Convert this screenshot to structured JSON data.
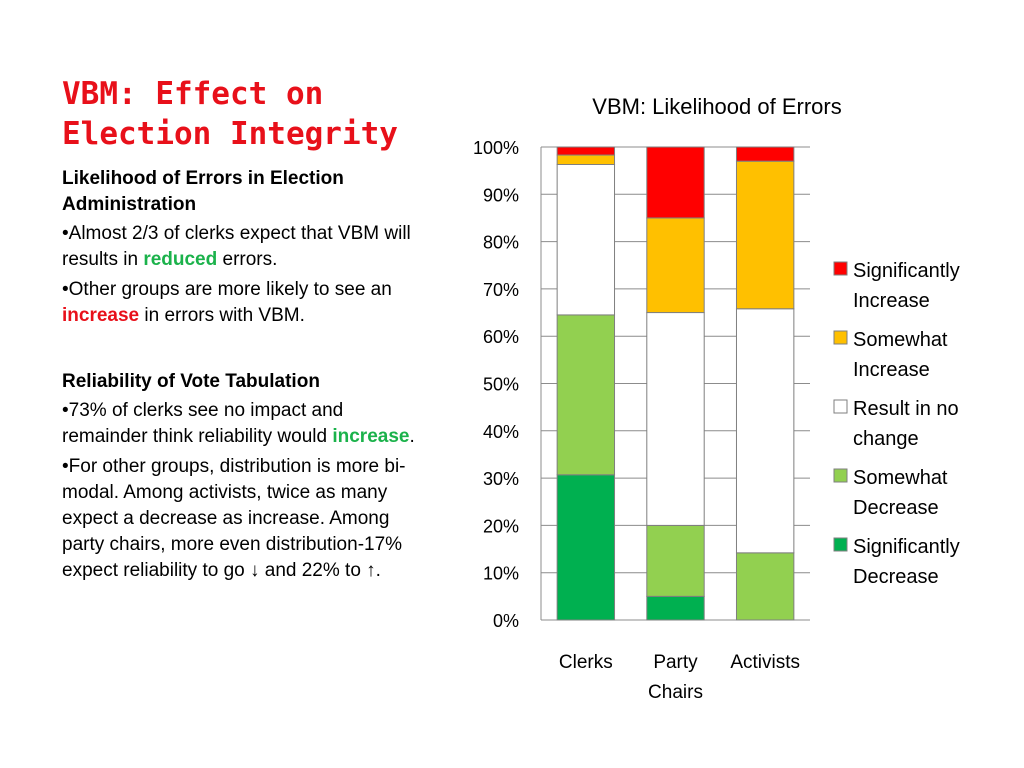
{
  "slide": {
    "title": "VBM: Effect on\nElection Integrity",
    "section1": {
      "heading": "Likelihood of Errors in Election Administration",
      "bullet1": {
        "pre": "•Almost 2/3 of clerks expect that VBM will results in ",
        "highlight": "reduced",
        "post": " errors."
      },
      "bullet2": {
        "pre": "•Other groups are more likely to see an ",
        "highlight": "increase",
        "post": " in errors with VBM."
      }
    },
    "section2": {
      "heading": "Reliability of Vote Tabulation",
      "bullet1": {
        "pre": "•73% of clerks see no impact and remainder think reliability would ",
        "highlight": "increase",
        "post": "."
      },
      "bullet2": {
        "text": "•For other groups, distribution is more bi-modal.  Among activists, twice as many expect a decrease as increase.  Among party chairs, more even distribution-17% expect reliability to go ↓ and 22%  to ↑."
      }
    },
    "colors": {
      "title": "#e8101a",
      "green_highlight": "#1bb24b",
      "red_highlight": "#e8101a"
    }
  },
  "chart_data": {
    "type": "bar",
    "stacked": true,
    "title": "VBM: Likelihood of Errors",
    "categories": [
      [
        "Clerks"
      ],
      [
        "Party",
        "Chairs"
      ],
      [
        "Activists"
      ]
    ],
    "ylim": [
      0,
      100
    ],
    "yticks": [
      0,
      10,
      20,
      30,
      40,
      50,
      60,
      70,
      80,
      90,
      100
    ],
    "ytick_format": "%",
    "grid": true,
    "legend": "right",
    "series": [
      {
        "name": "Significantly Decrease",
        "name_lines": [
          "Significantly",
          "Decrease"
        ],
        "color": "#00b050",
        "values": [
          30.7,
          5,
          0
        ]
      },
      {
        "name": "Somewhat Decrease",
        "name_lines": [
          "Somewhat",
          "Decrease"
        ],
        "color": "#92d050",
        "values": [
          33.8,
          15,
          14.2
        ]
      },
      {
        "name": "Result in no change",
        "name_lines": [
          "Result in no",
          "change"
        ],
        "color": "#ffffff",
        "values": [
          31.8,
          45,
          51.6
        ]
      },
      {
        "name": "Somewhat Increase",
        "name_lines": [
          "Somewhat",
          "Increase"
        ],
        "color": "#ffc000",
        "values": [
          2,
          20,
          31.2
        ]
      },
      {
        "name": "Significantly Increase",
        "name_lines": [
          "Significantly",
          "Increase"
        ],
        "color": "#ff0000",
        "values": [
          1.7,
          15,
          3
        ]
      }
    ]
  }
}
